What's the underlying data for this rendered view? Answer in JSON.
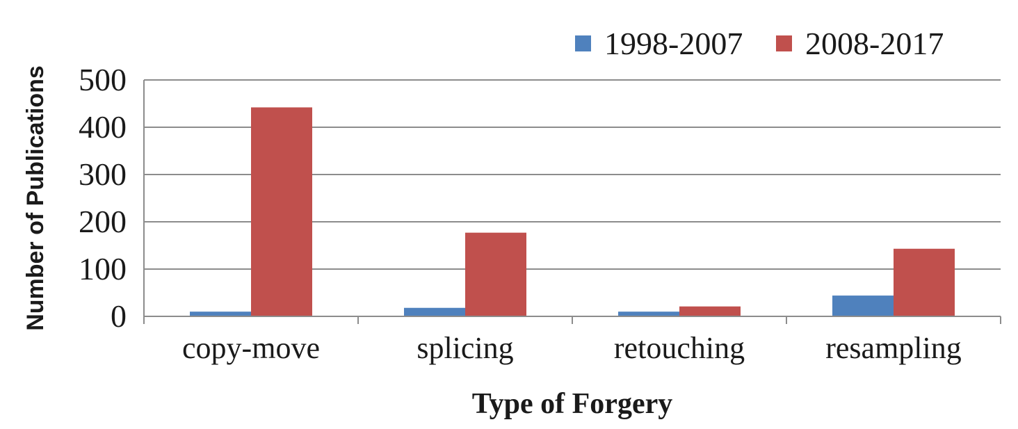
{
  "chart_data": {
    "type": "bar",
    "categories": [
      "copy-move",
      "splicing",
      "retouching",
      "resampling"
    ],
    "series": [
      {
        "name": "1998-2007",
        "values": [
          10,
          18,
          10,
          44
        ],
        "color": "#4f81bd"
      },
      {
        "name": "2008-2017",
        "values": [
          442,
          177,
          21,
          143
        ],
        "color": "#c0504d"
      }
    ],
    "xlabel": "Type of Forgery",
    "ylabel": "Number of Publications",
    "ylim": [
      0,
      500
    ],
    "yticks": [
      0,
      100,
      200,
      300,
      400,
      500
    ],
    "grid": true,
    "legend_position": "top-right"
  }
}
